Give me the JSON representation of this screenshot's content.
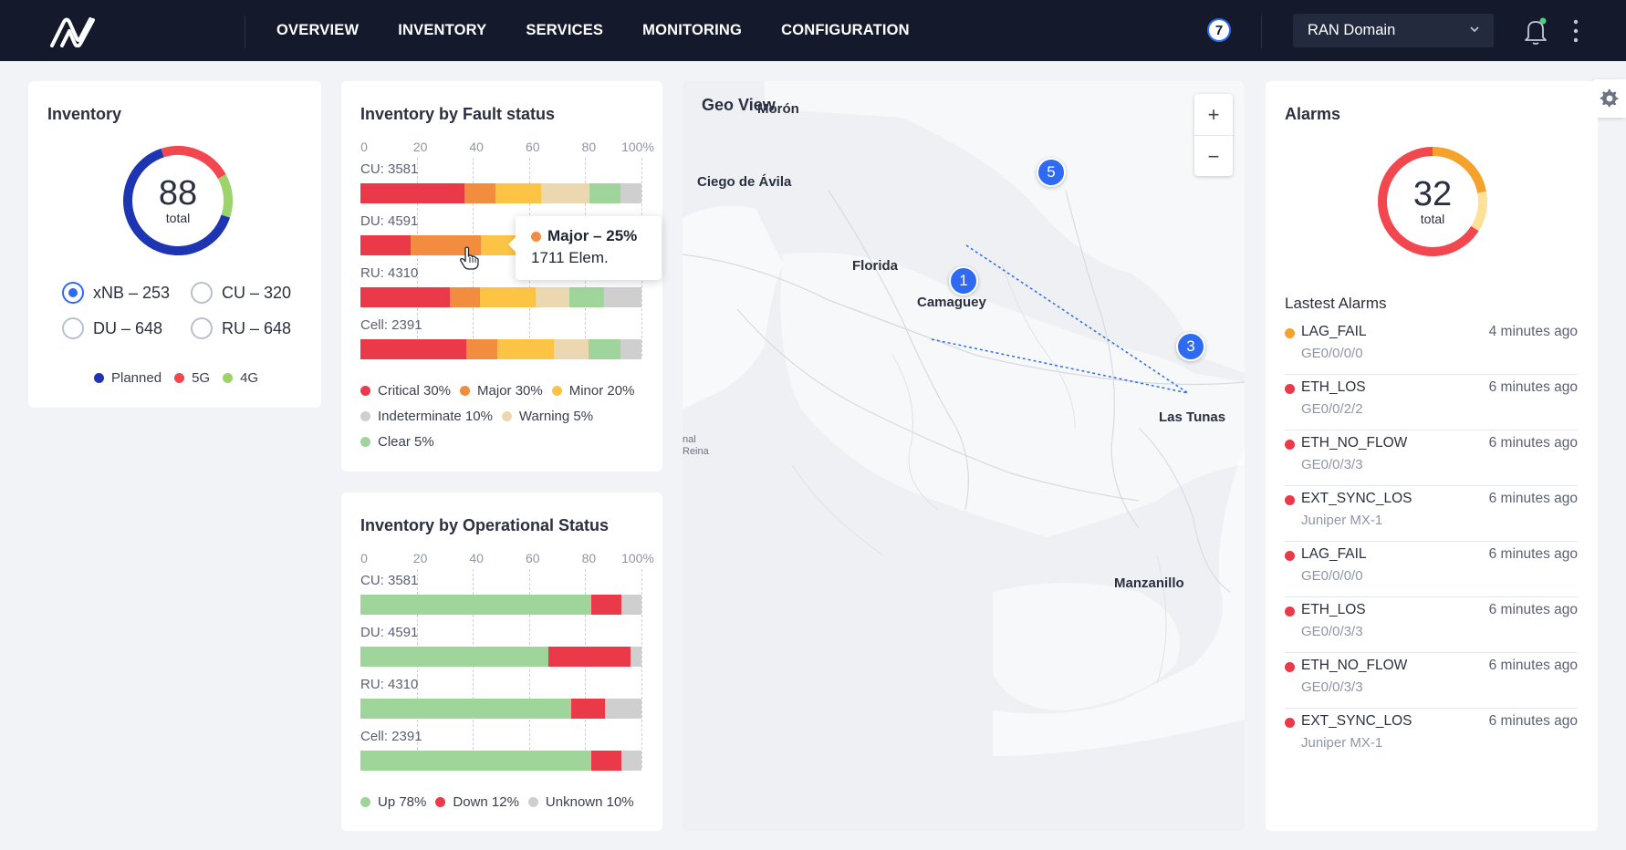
{
  "nav": {
    "items": [
      "OVERVIEW",
      "INVENTORY",
      "SERVICES",
      "MONITORING",
      "CONFIGURATION"
    ],
    "badge_count": "7",
    "domain_selected": "RAN Domain"
  },
  "inventory": {
    "title": "Inventory",
    "total": "88",
    "total_label": "total",
    "donut": {
      "planned_fraction": 0.65,
      "5g_fraction": 0.22,
      "4g_fraction": 0.13
    },
    "options": [
      {
        "label": "xNB – 253",
        "selected": true
      },
      {
        "label": "CU – 320",
        "selected": false
      },
      {
        "label": "DU – 648",
        "selected": false
      },
      {
        "label": "RU – 648",
        "selected": false
      }
    ],
    "legend": [
      {
        "label": "Planned",
        "color": "#1e35b3"
      },
      {
        "label": "5G",
        "color": "#f2474f"
      },
      {
        "label": "4G",
        "color": "#9cd36a"
      }
    ]
  },
  "axis_ticks": [
    "0",
    "20",
    "40",
    "60",
    "80",
    "100%"
  ],
  "fault": {
    "title": "Inventory by Fault status",
    "rows": [
      {
        "label": "CU: 3581",
        "segments": [
          30,
          9,
          13,
          14,
          9,
          6
        ]
      },
      {
        "label": "DU: 4591",
        "segments": [
          18,
          25,
          57,
          0,
          0,
          0
        ]
      },
      {
        "label": "RU: 4310",
        "segments": [
          26,
          9,
          16,
          10,
          10,
          11
        ]
      },
      {
        "label": "Cell: 2391",
        "segments": [
          30,
          9,
          16,
          10,
          9,
          6
        ]
      }
    ],
    "colors": [
      "#ea3a4a",
      "#f28c3f",
      "#fcc344",
      "#ecd8b0",
      "#9fd59a",
      "#cfcfcf"
    ],
    "legend": [
      {
        "label": "Critical 30%",
        "color": "#ea3a4a"
      },
      {
        "label": "Major 30%",
        "color": "#f28c3f"
      },
      {
        "label": "Minor 20%",
        "color": "#fcc344"
      },
      {
        "label": "Indeterminate 10%",
        "color": "#cfcfcf"
      },
      {
        "label": "Warning 5%",
        "color": "#ecd8b0"
      },
      {
        "label": "Clear 5%",
        "color": "#9fd59a"
      }
    ],
    "tooltip": {
      "title": "Major – 25%",
      "value": "1711 Elem."
    }
  },
  "operational": {
    "title": "Inventory by Operational Status",
    "rows": [
      {
        "label": "CU: 3581",
        "segments": [
          82,
          11,
          7
        ]
      },
      {
        "label": "DU: 4591",
        "segments": [
          67,
          29,
          4
        ]
      },
      {
        "label": "RU: 4310",
        "segments": [
          75,
          12,
          13
        ]
      },
      {
        "label": "Cell: 2391",
        "segments": [
          82,
          11,
          7
        ]
      }
    ],
    "colors": [
      "#9fd59a",
      "#ea3a4a",
      "#cfcfcf"
    ],
    "legend": [
      {
        "label": "Up 78%",
        "color": "#9fd59a"
      },
      {
        "label": "Down 12%",
        "color": "#ea3a4a"
      },
      {
        "label": "Unknown 10%",
        "color": "#cfcfcf"
      }
    ]
  },
  "map": {
    "title": "Geo View",
    "zoom_in": "+",
    "zoom_out": "−",
    "places": [
      "Morón",
      "Ciego de Ávila",
      "Florida",
      "Camaguey",
      "Las Tunas",
      "Manzanillo",
      "nal",
      "Reina"
    ],
    "markers": [
      "5",
      "1",
      "3"
    ]
  },
  "alarms": {
    "title": "Alarms",
    "total": "32",
    "total_label": "total",
    "donut": {
      "orange_fraction": 0.22,
      "yellow_fraction": 0.12,
      "red_fraction": 0.66
    },
    "latest_title": "Lastest Alarms",
    "items": [
      {
        "name": "LAG_FAIL",
        "time": "4 minutes ago",
        "sub": "GE0/0/0/0",
        "color": "#f5a22c"
      },
      {
        "name": "ETH_LOS",
        "time": "6 minutes ago",
        "sub": "GE0/0/2/2",
        "color": "#ea3a4a"
      },
      {
        "name": "ETH_NO_FLOW",
        "time": "6 minutes ago",
        "sub": "GE0/0/3/3",
        "color": "#ea3a4a"
      },
      {
        "name": "EXT_SYNC_LOS",
        "time": "6 minutes ago",
        "sub": "Juniper MX-1",
        "color": "#ea3a4a"
      },
      {
        "name": "LAG_FAIL",
        "time": "6 minutes ago",
        "sub": "GE0/0/0/0",
        "color": "#ea3a4a"
      },
      {
        "name": "ETH_LOS",
        "time": "6 minutes ago",
        "sub": "GE0/0/3/3",
        "color": "#ea3a4a"
      },
      {
        "name": "ETH_NO_FLOW",
        "time": "6 minutes ago",
        "sub": "GE0/0/3/3",
        "color": "#ea3a4a"
      },
      {
        "name": "EXT_SYNC_LOS",
        "time": "6 minutes ago",
        "sub": "Juniper MX-1",
        "color": "#ea3a4a"
      }
    ]
  }
}
